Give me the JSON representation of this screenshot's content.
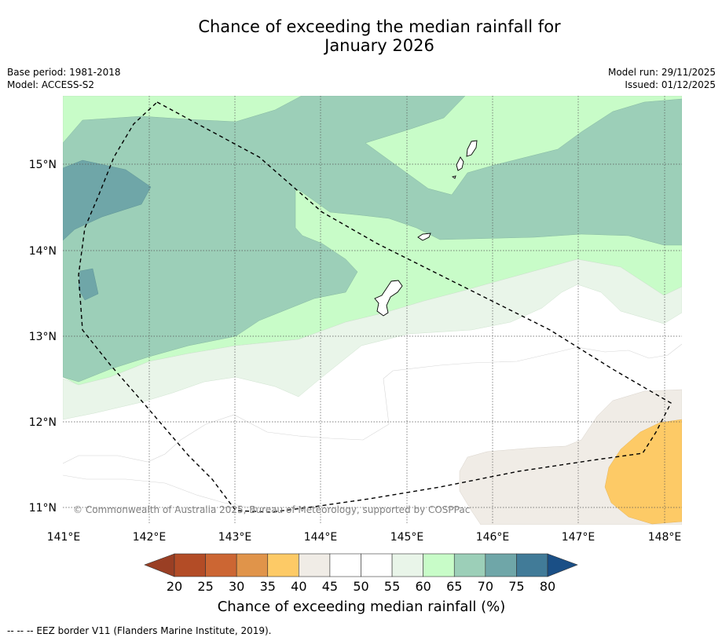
{
  "title_line1": "Chance of exceeding the median rainfall for",
  "title_line2": "January 2026",
  "meta": {
    "base_period": "Base period: 1981-2018",
    "model": "Model: ACCESS-S2",
    "model_run": "Model run: 29/11/2025",
    "issued": "Issued: 01/12/2025"
  },
  "map": {
    "lat_labels": [
      "15°N",
      "14°N",
      "13°N",
      "12°N",
      "11°N"
    ],
    "lon_labels": [
      "141°E",
      "142°E",
      "143°E",
      "144°E",
      "145°E",
      "146°E",
      "147°E",
      "148°E"
    ],
    "copyright": "© Commonwealth of Australia 2025, Bureau of Meteorology, supported by COSPPac"
  },
  "colorbar": {
    "ticks": [
      "20",
      "25",
      "30",
      "35",
      "40",
      "45",
      "50",
      "55",
      "60",
      "65",
      "70",
      "75",
      "80"
    ],
    "colors": [
      "#b34c26",
      "#cc6633",
      "#e0944a",
      "#fdca66",
      "#f0ece6",
      "#ffffff",
      "#ffffff",
      "#e9f5e9",
      "#c8fcc8",
      "#9ccfb8",
      "#6fa6a8",
      "#417b98"
    ],
    "under_color": "#9a3f24",
    "over_color": "#1a4f86",
    "label": "Chance of exceeding median rainfall (%)"
  },
  "footnote": "--  --  -- EEZ border V11 (Flanders Marine Institute, 2019)."
}
